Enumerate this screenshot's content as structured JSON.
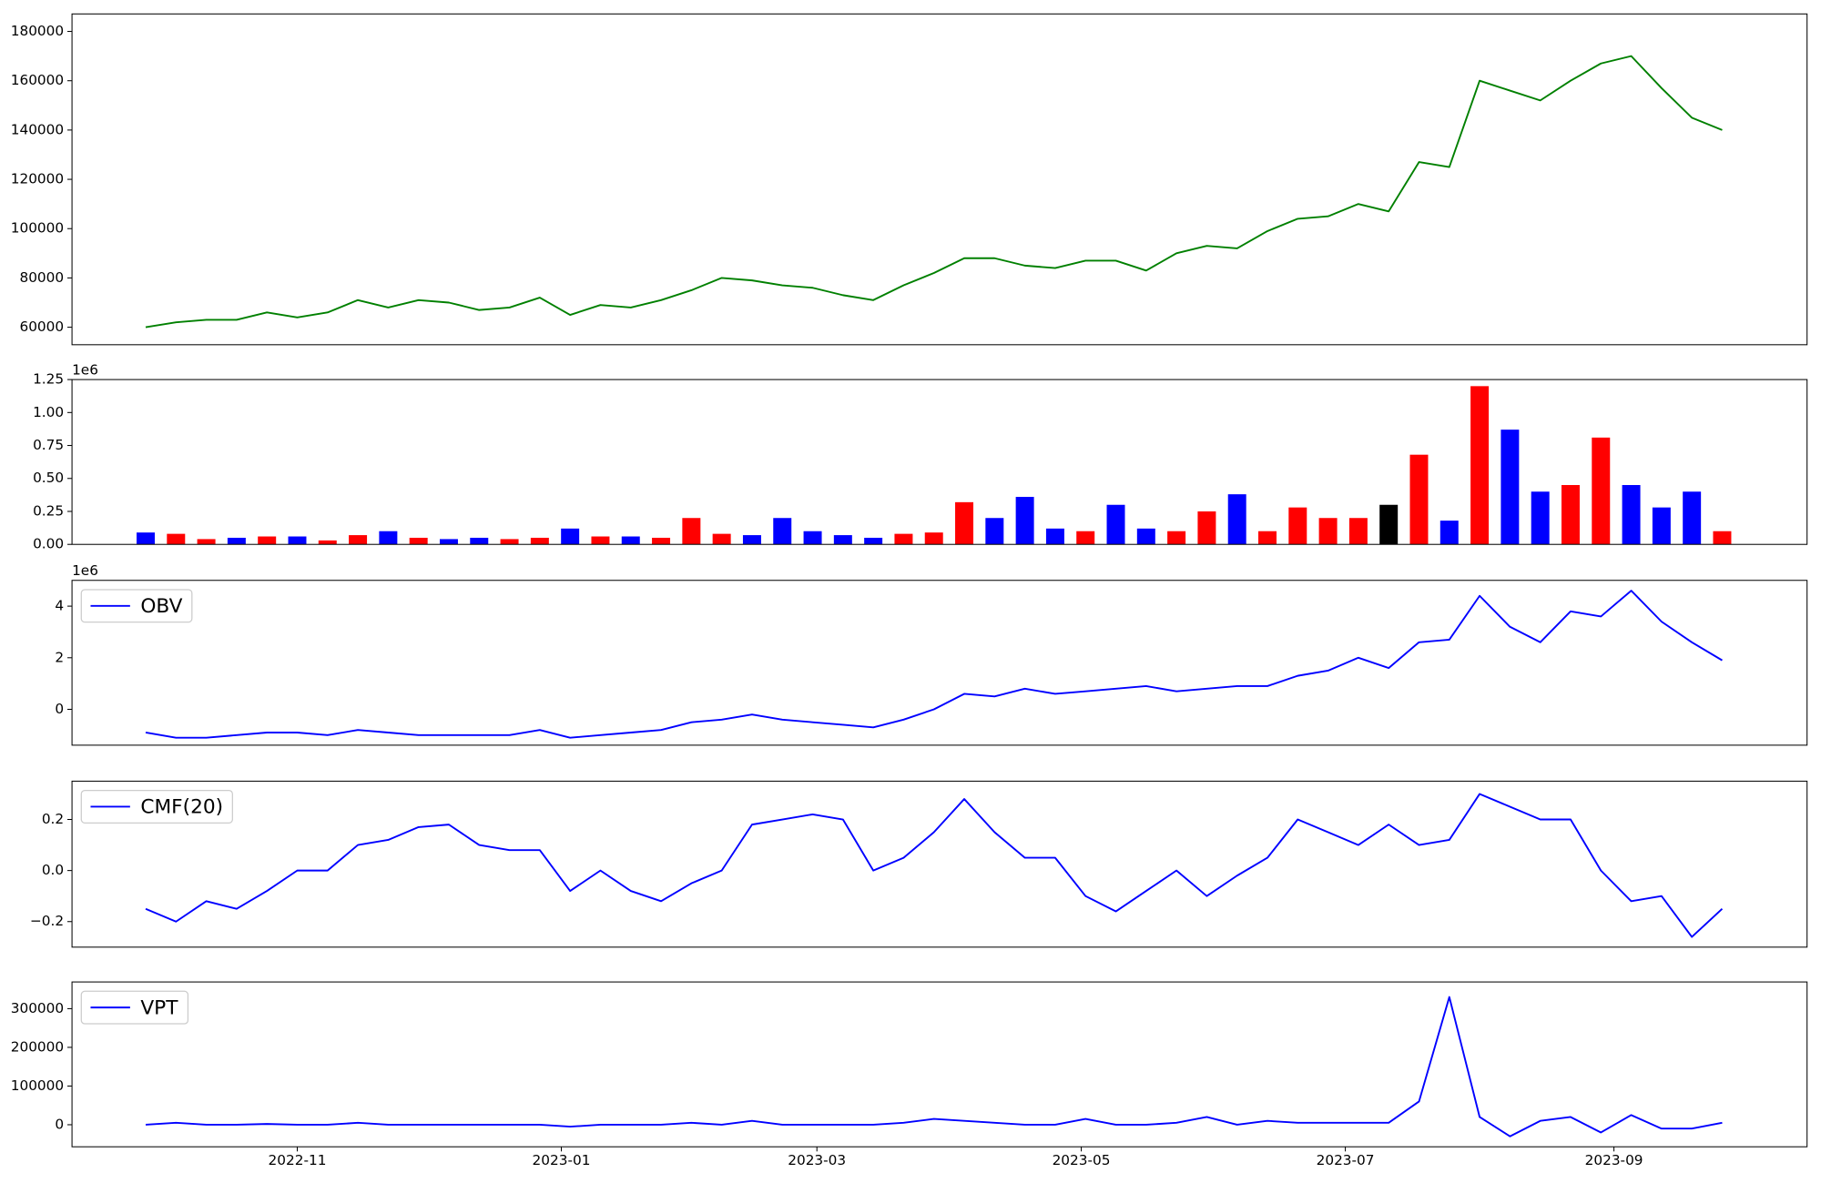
{
  "chart_data": [
    {
      "type": "line",
      "xlim": [
        -2.43,
        54.8
      ],
      "ylim": [
        52900,
        187100
      ],
      "yticks": [
        60000,
        80000,
        100000,
        120000,
        140000,
        160000,
        180000
      ],
      "series": [
        {
          "color": "#008000",
          "values": [
            60000,
            62000,
            63000,
            63000,
            66000,
            64000,
            66000,
            71000,
            68000,
            71000,
            70000,
            67000,
            68000,
            72000,
            65000,
            69000,
            68000,
            71000,
            75000,
            80000,
            79000,
            77000,
            76000,
            73000,
            71000,
            77000,
            82000,
            88000,
            88000,
            85000,
            84000,
            87000,
            87000,
            83000,
            90000,
            93000,
            92000,
            99000,
            104000,
            105000,
            110000,
            107000,
            127000,
            125000,
            160000,
            156000,
            152000,
            160000,
            167000,
            170000,
            157000,
            145000,
            140000
          ]
        }
      ]
    },
    {
      "type": "bar",
      "xlim": [
        -2.43,
        54.8
      ],
      "ylim": [
        0,
        1.25
      ],
      "y_offset_label": "1e6",
      "yticks": [
        {
          "value": 0,
          "label": "0.00"
        },
        {
          "value": 0.25,
          "label": "0.25"
        },
        {
          "value": 0.5,
          "label": "0.50"
        },
        {
          "value": 0.75,
          "label": "0.75"
        },
        {
          "value": 1,
          "label": "1.00"
        },
        {
          "value": 1.25,
          "label": "1.25"
        }
      ],
      "values": [
        0.09,
        0.08,
        0.04,
        0.05,
        0.06,
        0.06,
        0.03,
        0.07,
        0.1,
        0.05,
        0.04,
        0.05,
        0.04,
        0.05,
        0.12,
        0.06,
        0.06,
        0.05,
        0.2,
        0.08,
        0.07,
        0.2,
        0.1,
        0.07,
        0.05,
        0.08,
        0.09,
        0.32,
        0.2,
        0.36,
        0.12,
        0.1,
        0.3,
        0.12,
        0.1,
        0.25,
        0.38,
        0.1,
        0.28,
        0.2,
        0.2,
        0.3,
        0.68,
        0.18,
        1.2,
        0.87,
        0.4,
        0.45,
        0.81,
        0.45,
        0.28,
        0.4,
        0.1
      ],
      "colors": [
        "blue",
        "red",
        "red",
        "blue",
        "red",
        "blue",
        "red",
        "red",
        "blue",
        "red",
        "blue",
        "blue",
        "red",
        "red",
        "blue",
        "red",
        "blue",
        "red",
        "red",
        "red",
        "blue",
        "blue",
        "blue",
        "blue",
        "blue",
        "red",
        "red",
        "red",
        "blue",
        "blue",
        "blue",
        "red",
        "blue",
        "blue",
        "red",
        "red",
        "blue",
        "red",
        "red",
        "red",
        "red",
        "black",
        "red",
        "blue",
        "red",
        "blue",
        "blue",
        "red",
        "red",
        "blue",
        "blue",
        "blue",
        "red"
      ]
    },
    {
      "type": "line",
      "xlim": [
        -2.43,
        54.8
      ],
      "ylim": [
        -1.39,
        5.0
      ],
      "y_offset_label": "1e6",
      "yticks": [
        0,
        2,
        4
      ],
      "series": [
        {
          "name": "OBV",
          "color": "#0000ff",
          "values": [
            -0.9,
            -1.1,
            -1.1,
            -1.0,
            -0.9,
            -0.9,
            -1.0,
            -0.8,
            -0.9,
            -1.0,
            -1.0,
            -1.0,
            -1.0,
            -0.8,
            -1.1,
            -1.0,
            -0.9,
            -0.8,
            -0.5,
            -0.4,
            -0.2,
            -0.4,
            -0.5,
            -0.6,
            -0.7,
            -0.4,
            0.0,
            0.6,
            0.5,
            0.8,
            0.6,
            0.7,
            0.8,
            0.9,
            0.7,
            0.8,
            0.9,
            0.9,
            1.3,
            1.5,
            2.0,
            1.6,
            2.6,
            2.7,
            4.4,
            3.2,
            2.6,
            3.8,
            3.6,
            4.6,
            3.4,
            2.6,
            1.9
          ]
        }
      ]
    },
    {
      "type": "line",
      "xlim": [
        -2.43,
        54.8
      ],
      "ylim": [
        -0.3,
        0.35
      ],
      "yticks": [
        {
          "value": -0.2,
          "label": "−0.2"
        },
        {
          "value": 0,
          "label": "0.0"
        },
        {
          "value": 0.2,
          "label": "0.2"
        }
      ],
      "series": [
        {
          "name": "CMF(20)",
          "color": "#0000ff",
          "values": [
            -0.15,
            -0.2,
            -0.12,
            -0.15,
            -0.08,
            0.0,
            0.0,
            0.1,
            0.12,
            0.17,
            0.18,
            0.1,
            0.08,
            0.08,
            -0.08,
            0.0,
            -0.08,
            -0.12,
            -0.05,
            0.0,
            0.18,
            0.2,
            0.22,
            0.2,
            0.0,
            0.05,
            0.15,
            0.28,
            0.15,
            0.05,
            0.05,
            -0.1,
            -0.16,
            -0.08,
            0.0,
            -0.1,
            -0.02,
            0.05,
            0.2,
            0.15,
            0.1,
            0.18,
            0.1,
            0.12,
            0.3,
            0.25,
            0.2,
            0.2,
            0.0,
            -0.12,
            -0.1,
            -0.26,
            -0.15
          ]
        }
      ]
    },
    {
      "type": "line",
      "xlim": [
        -2.43,
        54.8
      ],
      "ylim": [
        -57000,
        369000
      ],
      "yticks": [
        0,
        100000,
        200000,
        300000
      ],
      "xticks": [
        {
          "value": 5,
          "label": "2022-11"
        },
        {
          "value": 13.71,
          "label": "2023-01"
        },
        {
          "value": 22.14,
          "label": "2023-03"
        },
        {
          "value": 30.86,
          "label": "2023-05"
        },
        {
          "value": 39.57,
          "label": "2023-07"
        },
        {
          "value": 48.43,
          "label": "2023-09"
        }
      ],
      "series": [
        {
          "name": "VPT",
          "color": "#0000ff",
          "values": [
            0,
            5000,
            0,
            0,
            2000,
            0,
            0,
            5000,
            0,
            0,
            0,
            0,
            0,
            0,
            -5000,
            0,
            0,
            0,
            5000,
            0,
            10000,
            0,
            0,
            0,
            0,
            5000,
            15000,
            10000,
            5000,
            0,
            0,
            15000,
            0,
            0,
            5000,
            20000,
            0,
            10000,
            5000,
            5000,
            5000,
            5000,
            60000,
            330000,
            20000,
            -30000,
            10000,
            20000,
            -20000,
            25000,
            -10000,
            -10000,
            5000
          ]
        }
      ]
    }
  ]
}
